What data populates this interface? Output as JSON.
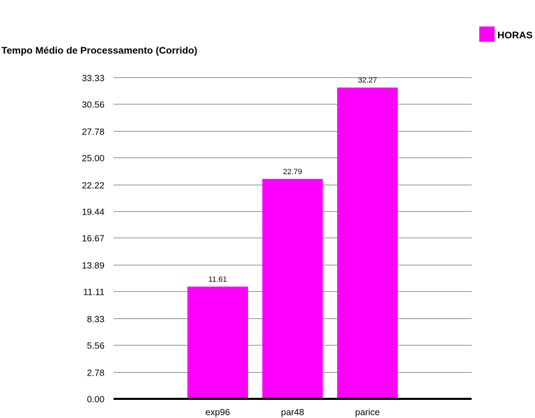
{
  "chart_data": {
    "type": "bar",
    "title": "Tempo Médio de Processamento (Corrido)",
    "categories": [
      "exp96",
      "par48",
      "parice"
    ],
    "series": [
      {
        "name": "HORAS",
        "values": [
          11.61,
          22.79,
          32.27
        ],
        "color": "#ff00ff"
      }
    ],
    "data_labels": [
      "11.61",
      "22.79",
      "32.27"
    ],
    "yticks": [
      "0.00",
      "2.78",
      "5.56",
      "8.33",
      "11.11",
      "13.89",
      "16.67",
      "19.44",
      "22.22",
      "25.00",
      "27.78",
      "30.56",
      "33.33"
    ],
    "ylim": [
      0,
      33.33
    ],
    "grid": true,
    "legend_position": "top-right",
    "xlabel": "",
    "ylabel": ""
  }
}
